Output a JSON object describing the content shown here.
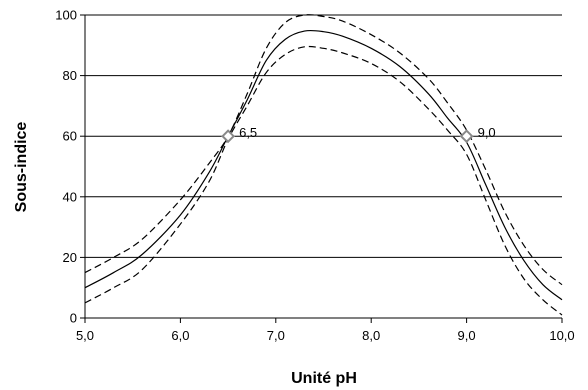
{
  "chart_data": {
    "type": "line",
    "xlabel": "Unité pH",
    "ylabel": "Sous-indice",
    "xlim": [
      5.0,
      10.0
    ],
    "ylim": [
      0,
      100
    ],
    "x_ticks": [
      "5,0",
      "6,0",
      "7,0",
      "8,0",
      "9,0",
      "10,0"
    ],
    "x_tick_values": [
      5,
      6,
      7,
      8,
      9,
      10
    ],
    "y_ticks": [
      "0",
      "20",
      "40",
      "60",
      "80",
      "100"
    ],
    "y_tick_values": [
      0,
      20,
      40,
      60,
      80,
      100
    ],
    "grid": "horizontal",
    "series": [
      {
        "line_style": "solid",
        "color": "#000000",
        "x": [
          5.0,
          5.3,
          5.6,
          6.0,
          6.3,
          6.5,
          6.7,
          6.9,
          7.1,
          7.3,
          7.5,
          7.7,
          8.0,
          8.3,
          8.6,
          8.8,
          9.0,
          9.2,
          9.4,
          9.6,
          9.8,
          10.0
        ],
        "y": [
          10,
          15,
          21,
          34,
          48,
          60,
          72,
          85,
          92,
          94.7,
          94.5,
          93,
          89,
          83,
          74,
          66,
          58,
          44,
          30,
          19,
          11,
          6
        ]
      },
      {
        "line_style": "dashed",
        "color": "#000000",
        "x": [
          5.0,
          5.3,
          5.6,
          6.0,
          6.3,
          6.5,
          6.7,
          6.9,
          7.1,
          7.3,
          7.5,
          7.7,
          8.0,
          8.3,
          8.6,
          8.8,
          9.0,
          9.2,
          9.4,
          9.6,
          9.8,
          10.0
        ],
        "y": [
          15,
          20,
          26,
          39,
          51,
          60,
          74,
          89,
          97.5,
          100,
          99.5,
          98,
          93.5,
          87.5,
          79,
          71,
          62,
          49,
          35,
          24,
          16,
          11
        ]
      },
      {
        "line_style": "dashed",
        "color": "#000000",
        "x": [
          5.0,
          5.3,
          5.6,
          6.0,
          6.3,
          6.5,
          6.7,
          6.9,
          7.1,
          7.3,
          7.5,
          7.7,
          8.0,
          8.3,
          8.6,
          8.8,
          9.0,
          9.2,
          9.4,
          9.6,
          9.8,
          10.0
        ],
        "y": [
          5,
          10,
          16,
          31,
          45,
          59,
          70,
          81,
          87,
          89.5,
          89,
          87.5,
          84,
          78,
          69,
          62,
          54,
          39,
          24,
          13,
          6,
          1
        ]
      }
    ],
    "markers": [
      {
        "x": 6.5,
        "y": 60,
        "label": "6,5",
        "color": "#888888"
      },
      {
        "x": 9.0,
        "y": 60,
        "label": "9,0",
        "color": "#888888"
      }
    ]
  }
}
